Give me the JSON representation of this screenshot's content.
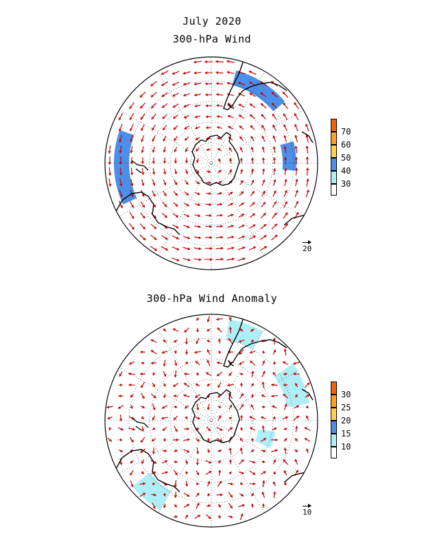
{
  "header": {
    "title": "July 2020",
    "panel1_title": "300-hPa Wind",
    "panel2_title": "300-hPa Wind Anomaly"
  },
  "colors": {
    "shade_light": "#aeeff7",
    "shade_mid": "#4c8fe8",
    "shade_yellow": "#ffd14f",
    "shade_orange": "#ff9f25",
    "shade_red": "#f06010",
    "vector": "#c40000",
    "coast": "#000000"
  },
  "panel1": {
    "colorbar": {
      "labels": [
        "70",
        "60",
        "50",
        "40",
        "30"
      ],
      "colors": [
        "#f06010",
        "#ff9f25",
        "#ffd14f",
        "#4c8fe8",
        "#aeeff7",
        "#ffffff"
      ]
    },
    "reference_vector": "20"
  },
  "panel2": {
    "colorbar": {
      "labels": [
        "30",
        "25",
        "20",
        "15",
        "10"
      ],
      "colors": [
        "#f06010",
        "#ff9f25",
        "#ffd14f",
        "#4c8fe8",
        "#aeeff7",
        "#ffffff"
      ]
    },
    "reference_vector": "10"
  }
}
